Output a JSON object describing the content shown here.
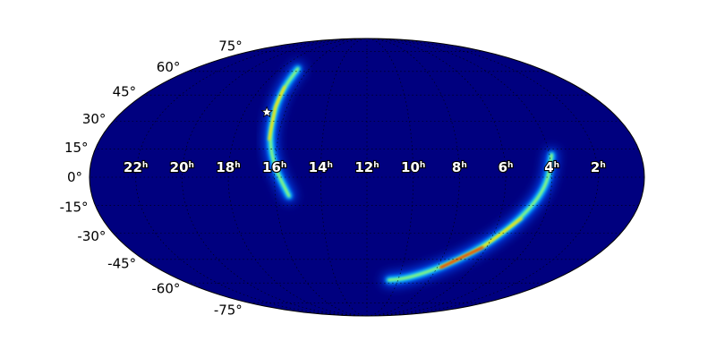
{
  "chart_data": {
    "type": "heatmap",
    "projection": "mollweide",
    "title": "",
    "colormap": "jet",
    "background_color": "#00007f",
    "grid": true,
    "ra_tick_labels": [
      {
        "hours": 22,
        "label": "22",
        "unit": "h"
      },
      {
        "hours": 20,
        "label": "20",
        "unit": "h"
      },
      {
        "hours": 18,
        "label": "18",
        "unit": "h"
      },
      {
        "hours": 16,
        "label": "16",
        "unit": "h"
      },
      {
        "hours": 14,
        "label": "14",
        "unit": "h"
      },
      {
        "hours": 12,
        "label": "12",
        "unit": "h"
      },
      {
        "hours": 10,
        "label": "10",
        "unit": "h"
      },
      {
        "hours": 8,
        "label": "8",
        "unit": "h"
      },
      {
        "hours": 6,
        "label": "6",
        "unit": "h"
      },
      {
        "hours": 4,
        "label": "4",
        "unit": "h"
      },
      {
        "hours": 2,
        "label": "2",
        "unit": "h"
      }
    ],
    "dec_tick_labels": [
      {
        "deg": 75,
        "label": "75°"
      },
      {
        "deg": 60,
        "label": "60°"
      },
      {
        "deg": 45,
        "label": "45°"
      },
      {
        "deg": 30,
        "label": "30°"
      },
      {
        "deg": 15,
        "label": "15°"
      },
      {
        "deg": 0,
        "label": "0°"
      },
      {
        "deg": -15,
        "label": "-15°"
      },
      {
        "deg": -30,
        "label": "-30°"
      },
      {
        "deg": -45,
        "label": "-45°"
      },
      {
        "deg": -60,
        "label": "-60°"
      },
      {
        "deg": -75,
        "label": "-75°"
      }
    ],
    "probability_arcs": [
      {
        "ra_dec_path": [
          [
            16.8,
            62
          ],
          [
            16.7,
            50
          ],
          [
            16.6,
            38
          ],
          [
            16.4,
            20
          ],
          [
            16.0,
            5
          ],
          [
            15.4,
            -10
          ]
        ],
        "peak": "yellow"
      },
      {
        "ra_dec_path": [
          [
            3.9,
            12
          ],
          [
            4.2,
            -5
          ],
          [
            5.0,
            -22
          ],
          [
            6.2,
            -38
          ],
          [
            7.8,
            -50
          ],
          [
            9.5,
            -57
          ],
          [
            10.6,
            -58
          ]
        ],
        "peak": "red"
      }
    ],
    "marker": {
      "type": "star",
      "ra_hours": 16.9,
      "dec_deg": 35,
      "color": "#ffffff"
    }
  }
}
